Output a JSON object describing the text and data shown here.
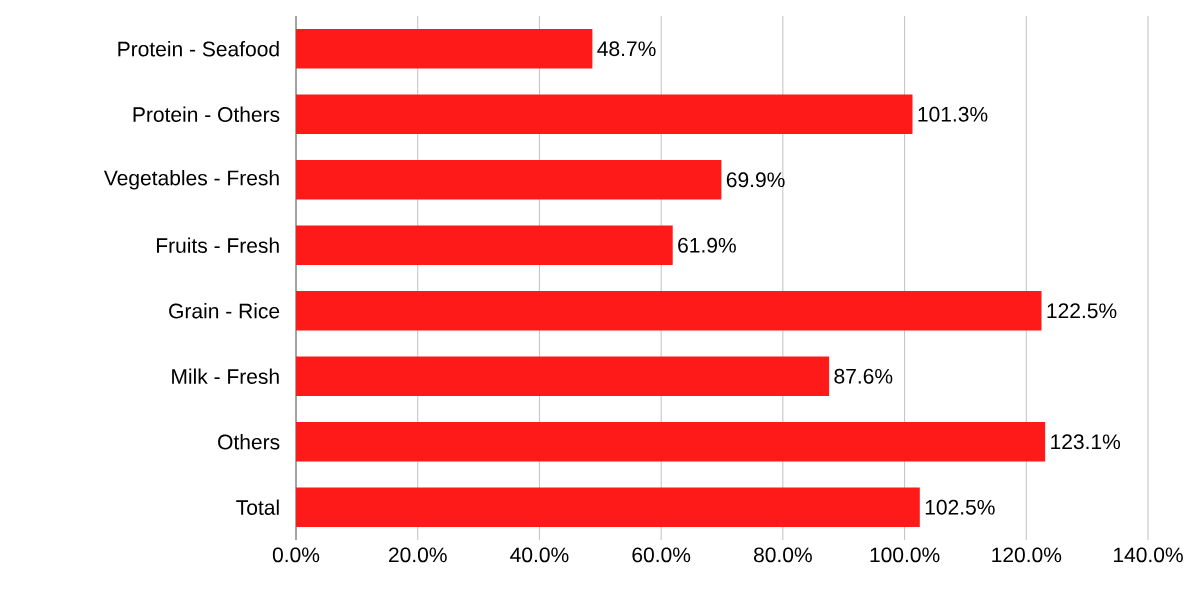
{
  "chart_data": {
    "type": "bar",
    "orientation": "horizontal",
    "categories": [
      "Protein - Seafood",
      "Protein - Others",
      "Vegetables - Fresh",
      "Fruits - Fresh",
      "Grain - Rice",
      "Milk - Fresh",
      "Others",
      "Total"
    ],
    "values": [
      48.7,
      101.3,
      69.9,
      61.9,
      122.5,
      87.6,
      123.1,
      102.5
    ],
    "value_labels": [
      "48.7%",
      "101.3%",
      "69.9%",
      "61.9%",
      "122.5%",
      "87.6%",
      "123.1%",
      "102.5%"
    ],
    "color": "#ff1a1a",
    "xlim": [
      0,
      140
    ],
    "xticks": [
      {
        "value": 0,
        "label": "0.0%"
      },
      {
        "value": 20,
        "label": "20.0%"
      },
      {
        "value": 40,
        "label": "40.0%"
      },
      {
        "value": 60,
        "label": "60.0%"
      },
      {
        "value": 80,
        "label": "80.0%"
      },
      {
        "value": 100,
        "label": "100.0%"
      },
      {
        "value": 120,
        "label": "120.0%"
      },
      {
        "value": 140,
        "label": "140.0%"
      }
    ],
    "grid": "x"
  }
}
